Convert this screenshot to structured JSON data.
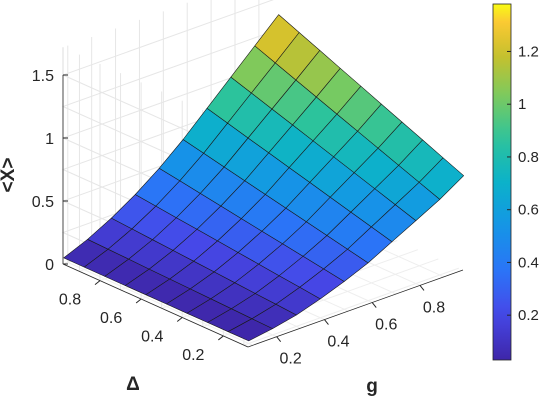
{
  "chart_data": {
    "type": "surface",
    "xlabel": "g",
    "ylabel": "Δ",
    "zlabel": "<X>",
    "x": [
      0.1,
      0.2,
      0.3,
      0.4,
      0.5,
      0.6,
      0.7,
      0.8,
      0.9,
      1.0
    ],
    "y": [
      0.1,
      0.2,
      0.3,
      0.4,
      0.5,
      0.6,
      0.7,
      0.8,
      0.9,
      1.0
    ],
    "z_by_x_at_min_y": [
      0.02,
      0.05,
      0.09,
      0.15,
      0.22,
      0.3,
      0.4,
      0.5,
      0.6,
      0.72
    ],
    "z_by_x_at_max_y": [
      0.02,
      0.1,
      0.2,
      0.32,
      0.46,
      0.62,
      0.8,
      0.98,
      1.16,
      1.34
    ],
    "x_ticks": [
      "0.2",
      "0.4",
      "0.6",
      "0.8"
    ],
    "y_ticks": [
      "0.2",
      "0.4",
      "0.6",
      "0.8"
    ],
    "z_ticks": [
      "0",
      "0.5",
      "1",
      "1.5"
    ],
    "zlim": [
      0,
      1.5
    ],
    "grid": true,
    "colorbar": {
      "range": [
        0.03,
        1.38
      ],
      "ticks": [
        "0.2",
        "0.4",
        "0.6",
        "0.8",
        "1",
        "1.2"
      ],
      "tick_values": [
        0.2,
        0.4,
        0.6,
        0.8,
        1.0,
        1.2
      ],
      "colormap": "parula"
    }
  }
}
